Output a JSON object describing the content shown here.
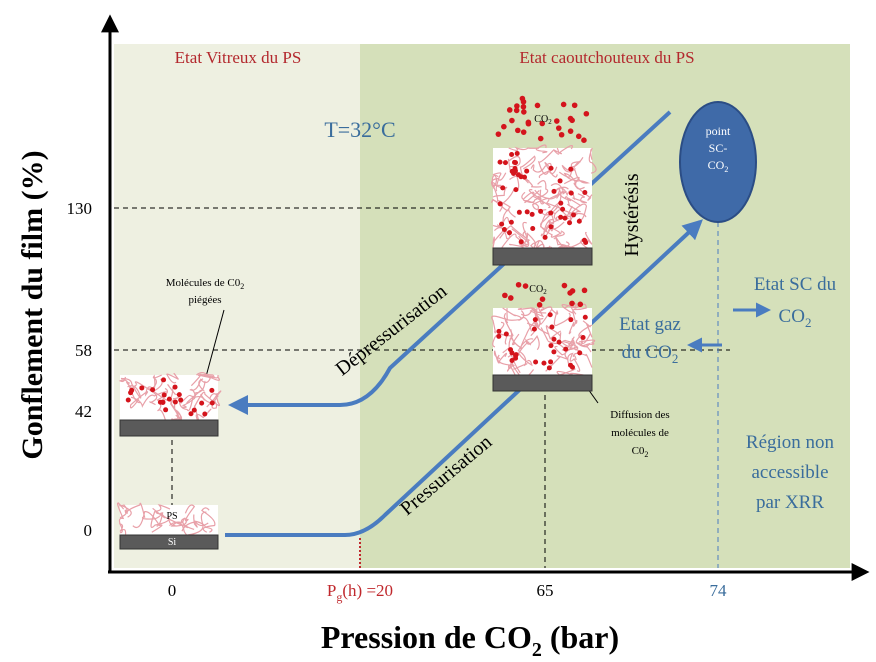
{
  "regions": {
    "glassy": "Etat Vitreux du PS",
    "rubbery": "Etat caoutchouteux du PS"
  },
  "temperature": "T=32°C",
  "y_axis": {
    "title": "Gonflement du film (%)",
    "ticks": [
      "130",
      "58",
      "42",
      "0"
    ]
  },
  "x_axis": {
    "title": [
      "Pression de CO",
      "2",
      " (bar)"
    ],
    "ticks": [
      "0",
      "65",
      "74"
    ],
    "pg_tick": [
      "P",
      "g",
      "(h) =20"
    ]
  },
  "curves": {
    "pressurisation": "Pressurisation",
    "depressurisation": "Dépressurisation",
    "hysteresis": "Hystérésis"
  },
  "critical_point": [
    "point",
    "SC-",
    "CO",
    "2"
  ],
  "states": {
    "sc": [
      "Etat SC du",
      "CO",
      "2"
    ],
    "gas": [
      "Etat gaz",
      "du CO",
      "2"
    ],
    "non_accessible": [
      "Région non",
      "accessible",
      "par XRR"
    ]
  },
  "annotations": {
    "trapped": [
      "Molécules de C0",
      "2",
      "piégées"
    ],
    "diffusion": [
      "Diffusion des",
      "molécules de",
      "C0",
      "2"
    ]
  },
  "films": {
    "ps": "PS",
    "si": "Si",
    "co2_top": [
      "CO",
      "2"
    ],
    "co2_bottom": [
      "CO",
      "2"
    ]
  }
}
